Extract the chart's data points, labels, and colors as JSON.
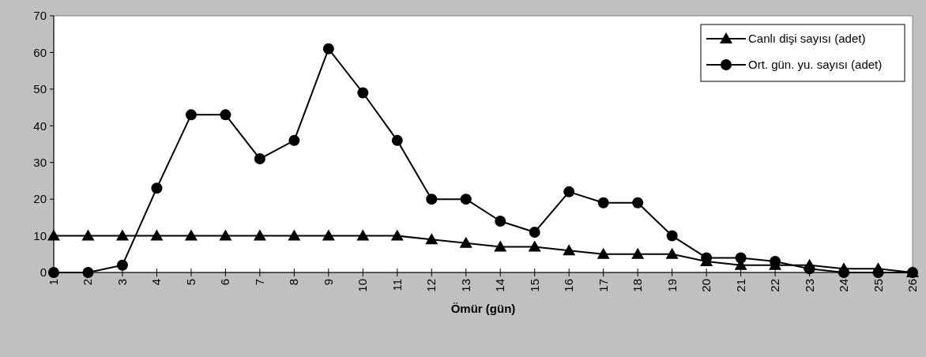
{
  "chart_data": {
    "type": "line",
    "xlabel": "Ömür (gün)",
    "categories": [
      "1",
      "2",
      "3",
      "4",
      "5",
      "6",
      "7",
      "8",
      "9",
      "10",
      "11",
      "12",
      "13",
      "14",
      "15",
      "16",
      "17",
      "18",
      "19",
      "20",
      "21",
      "22",
      "23",
      "24",
      "25",
      "26"
    ],
    "series": [
      {
        "name": "Canlı dişi sayısı (adet)",
        "color": "#000000",
        "marker": "triangle",
        "values": [
          10,
          10,
          10,
          10,
          10,
          10,
          10,
          10,
          10,
          10,
          10,
          9,
          8,
          7,
          7,
          6,
          5,
          5,
          5,
          3,
          2,
          2,
          2,
          1,
          1,
          0
        ]
      },
      {
        "name": "Ort. gün. yu. sayısı (adet)",
        "color": "#000000",
        "marker": "circle",
        "values": [
          0,
          0,
          2,
          23,
          43,
          43,
          31,
          36,
          61,
          49,
          36,
          20,
          20,
          14,
          11,
          22,
          19,
          19,
          10,
          4,
          4,
          3,
          1,
          0,
          0,
          0
        ]
      }
    ],
    "ylim": [
      0,
      70
    ],
    "yticks": [
      0,
      10,
      20,
      30,
      40,
      50,
      60,
      70
    ],
    "grid": false,
    "legend": "top right",
    "line_style": "solid"
  }
}
